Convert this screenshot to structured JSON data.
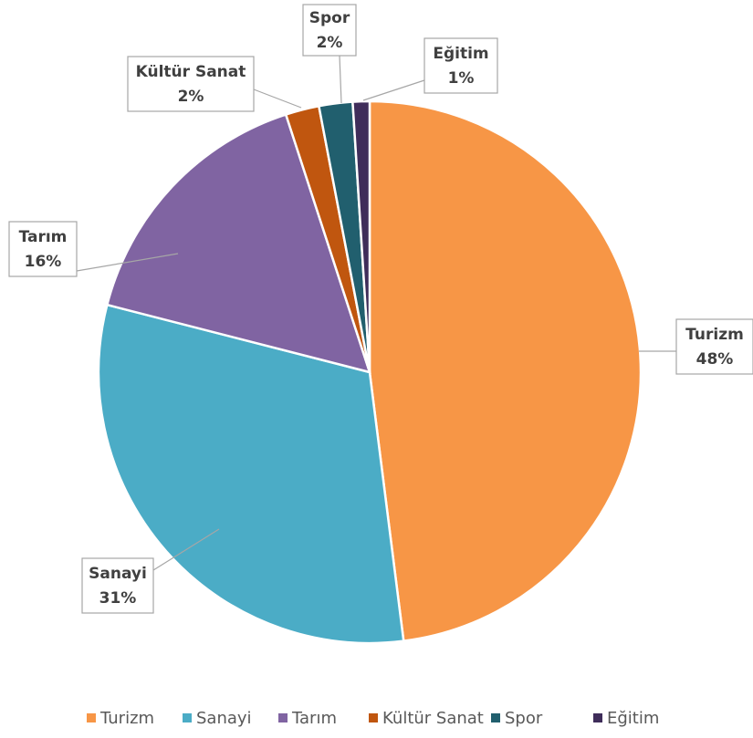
{
  "chart_data": {
    "type": "pie",
    "categories": [
      "Turizm",
      "Sanayi",
      "Tarım",
      "Kültür Sanat",
      "Spor",
      "Eğitim"
    ],
    "values": [
      48,
      31,
      16,
      2,
      2,
      1
    ],
    "value_labels": [
      "48%",
      "31%",
      "16%",
      "2%",
      "2%",
      "1%"
    ],
    "colors": [
      "#f79646",
      "#4bacc6",
      "#8064a2",
      "#c0560f",
      "#215f6e",
      "#3f2d5a"
    ],
    "legend": "bottom"
  }
}
